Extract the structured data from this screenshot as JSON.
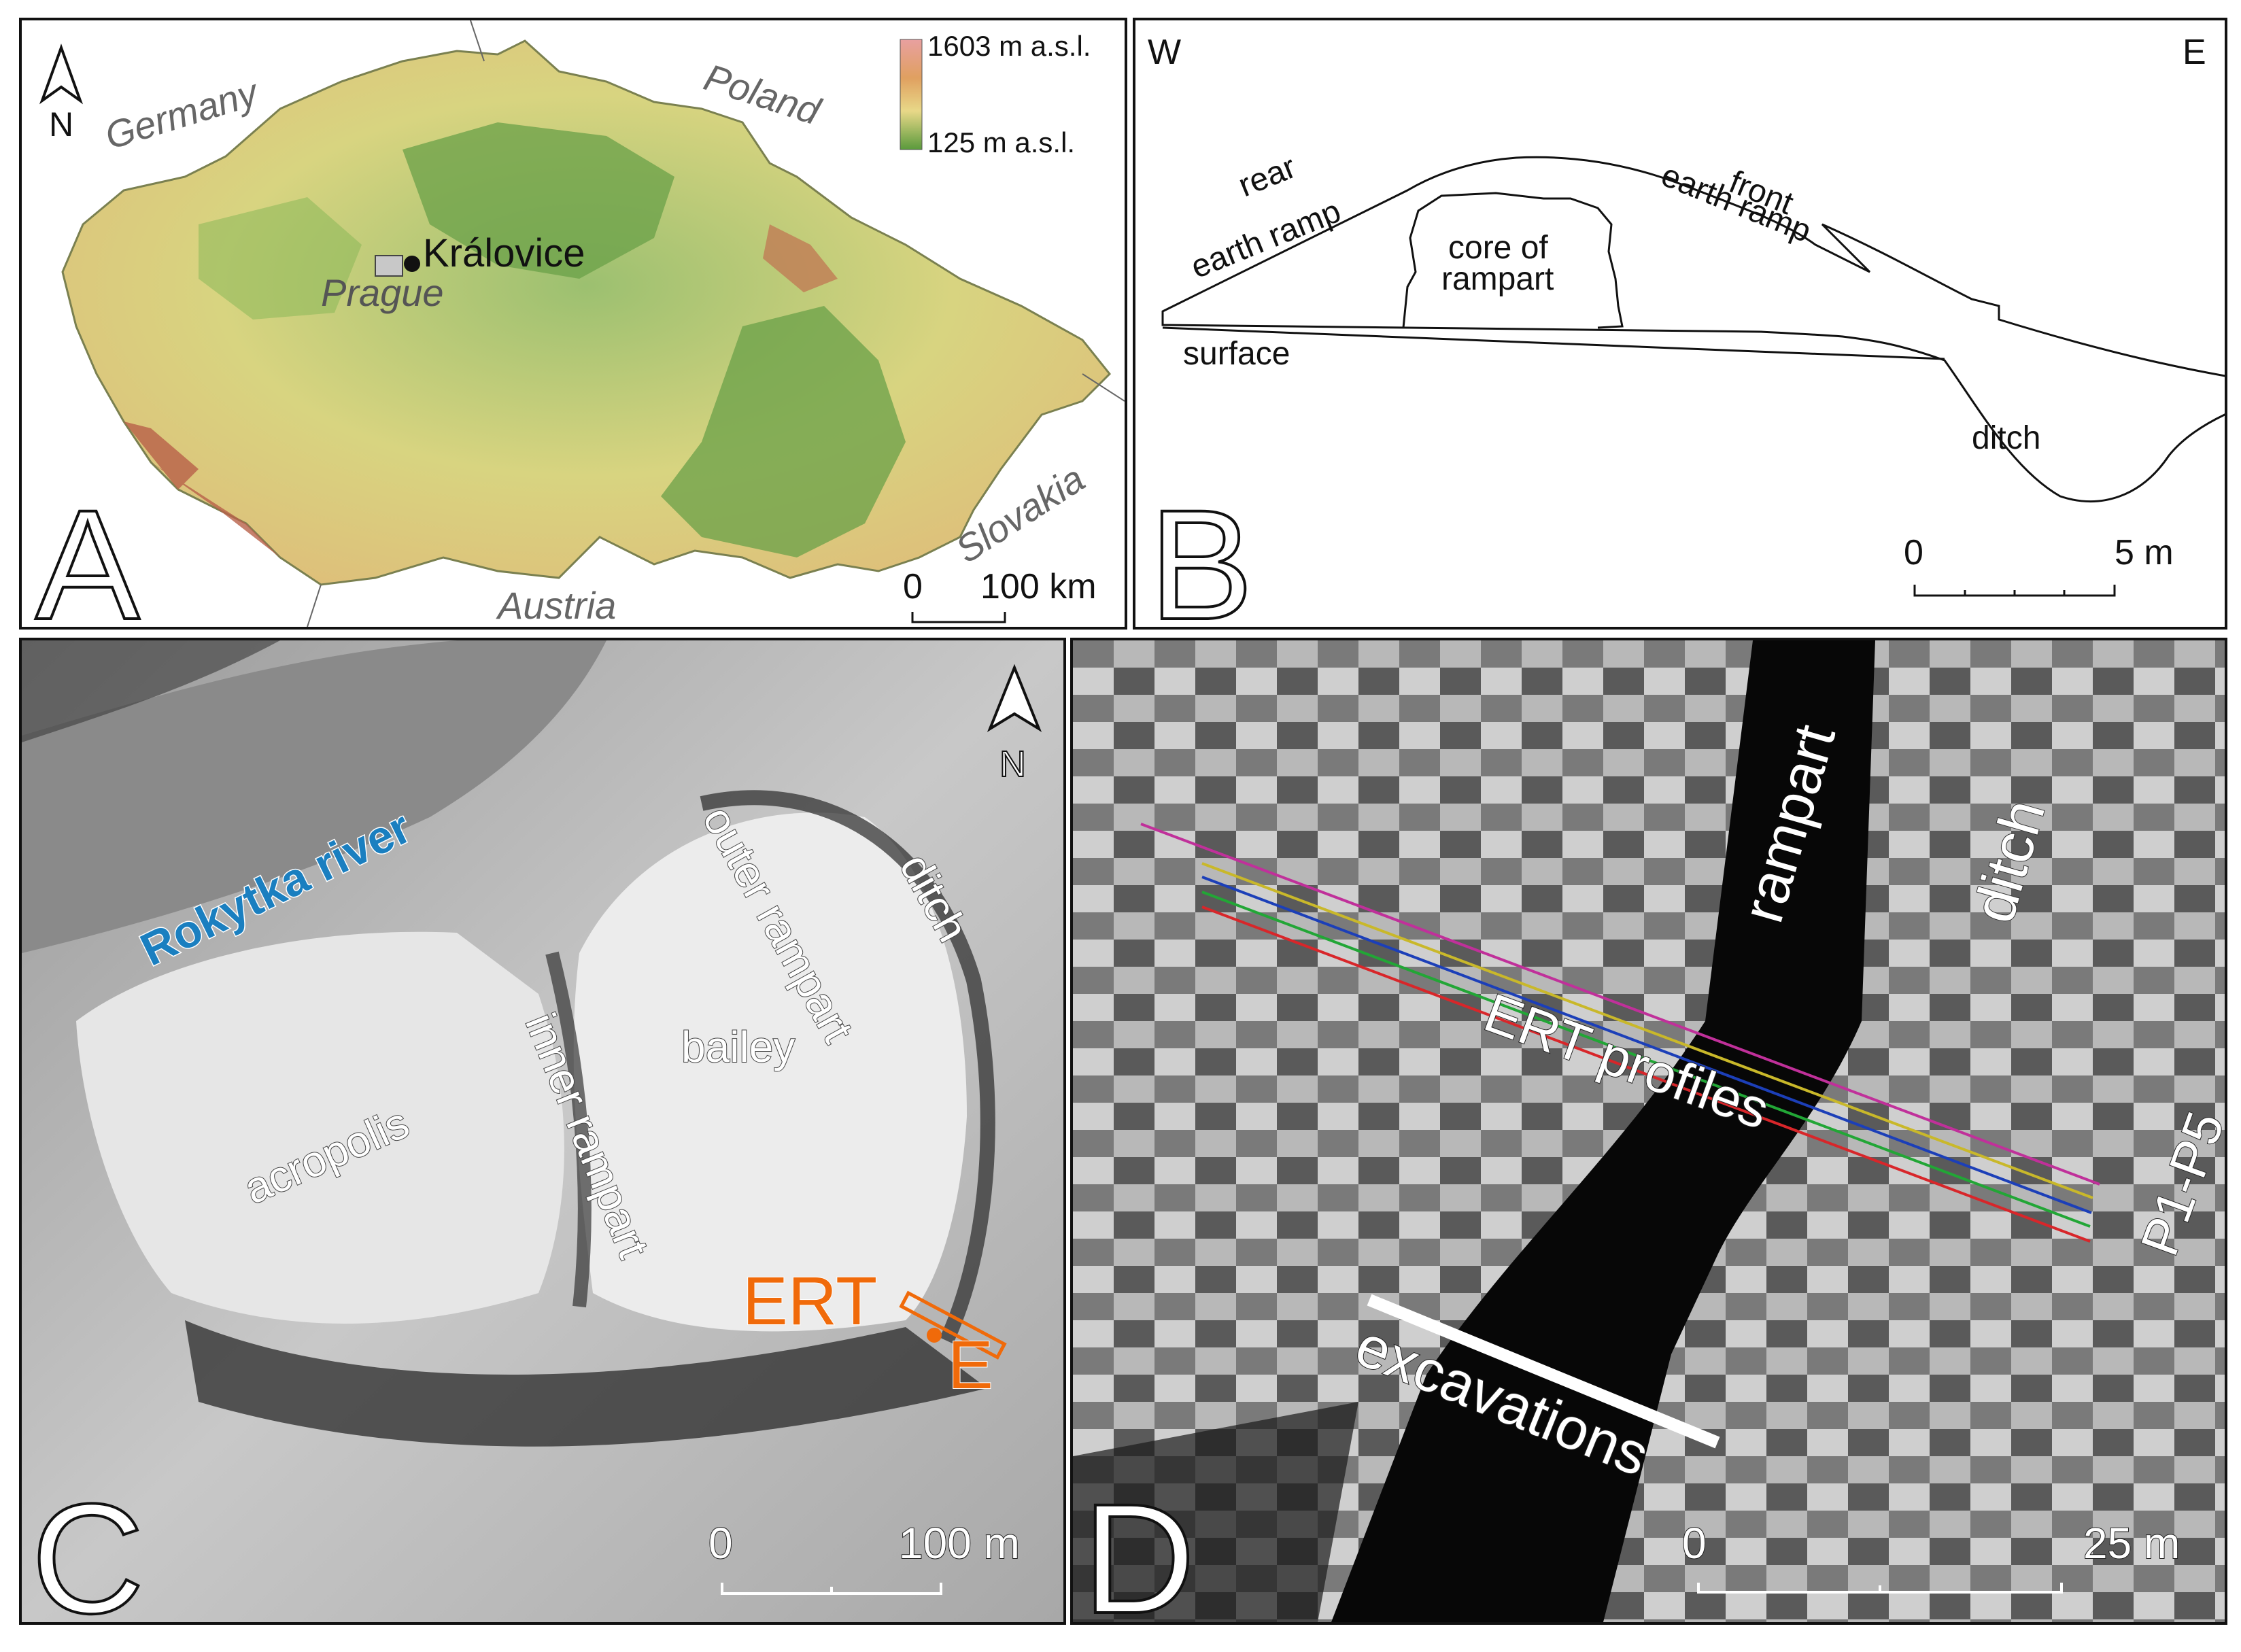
{
  "panel_a": {
    "letter": "A",
    "north_label": "N",
    "countries": [
      "Germany",
      "Poland",
      "Austria",
      "Slovakia"
    ],
    "site_label": "Královice",
    "city_label": "Prague",
    "legend_max": "1603 m a.s.l.",
    "legend_min": "125 m a.s.l.",
    "scale_zero": "0",
    "scale_end": "100 km",
    "colors": {
      "low": "#5a9a3c",
      "mid": "#e8d888",
      "high": "#b86048"
    }
  },
  "panel_b": {
    "letter": "B",
    "west": "W",
    "east": "E",
    "rear_1": "rear",
    "rear_2": "earth ramp",
    "core_1": "core of",
    "core_2": "rampart",
    "front_1": "front",
    "front_2": "earth ramp",
    "surface": "surface",
    "ditch": "ditch",
    "scale_zero": "0",
    "scale_end": "5 m"
  },
  "panel_c": {
    "letter": "C",
    "north_label": "N",
    "river": "Rokytka river",
    "outer_rampart": "outer rampart",
    "ditch": "ditch",
    "bailey": "bailey",
    "inner_rampart": "inner rampart",
    "acropolis": "acropolis",
    "ert": "ERT",
    "e_label": "E",
    "scale_zero": "0",
    "scale_end": "100 m",
    "colors": {
      "river": "#1a7fc0",
      "ert": "#f06a0a"
    }
  },
  "panel_d": {
    "letter": "D",
    "rampart": "rampart",
    "ditch": "ditch",
    "ert_profiles": "ERT profiles",
    "profiles_id": "P1-P5",
    "excavations": "excavations",
    "scale_zero": "0",
    "scale_end": "25 m",
    "profile_colors": [
      "#c0309a",
      "#c9b82a",
      "#1c3fb8",
      "#22a636",
      "#d8262a"
    ]
  }
}
